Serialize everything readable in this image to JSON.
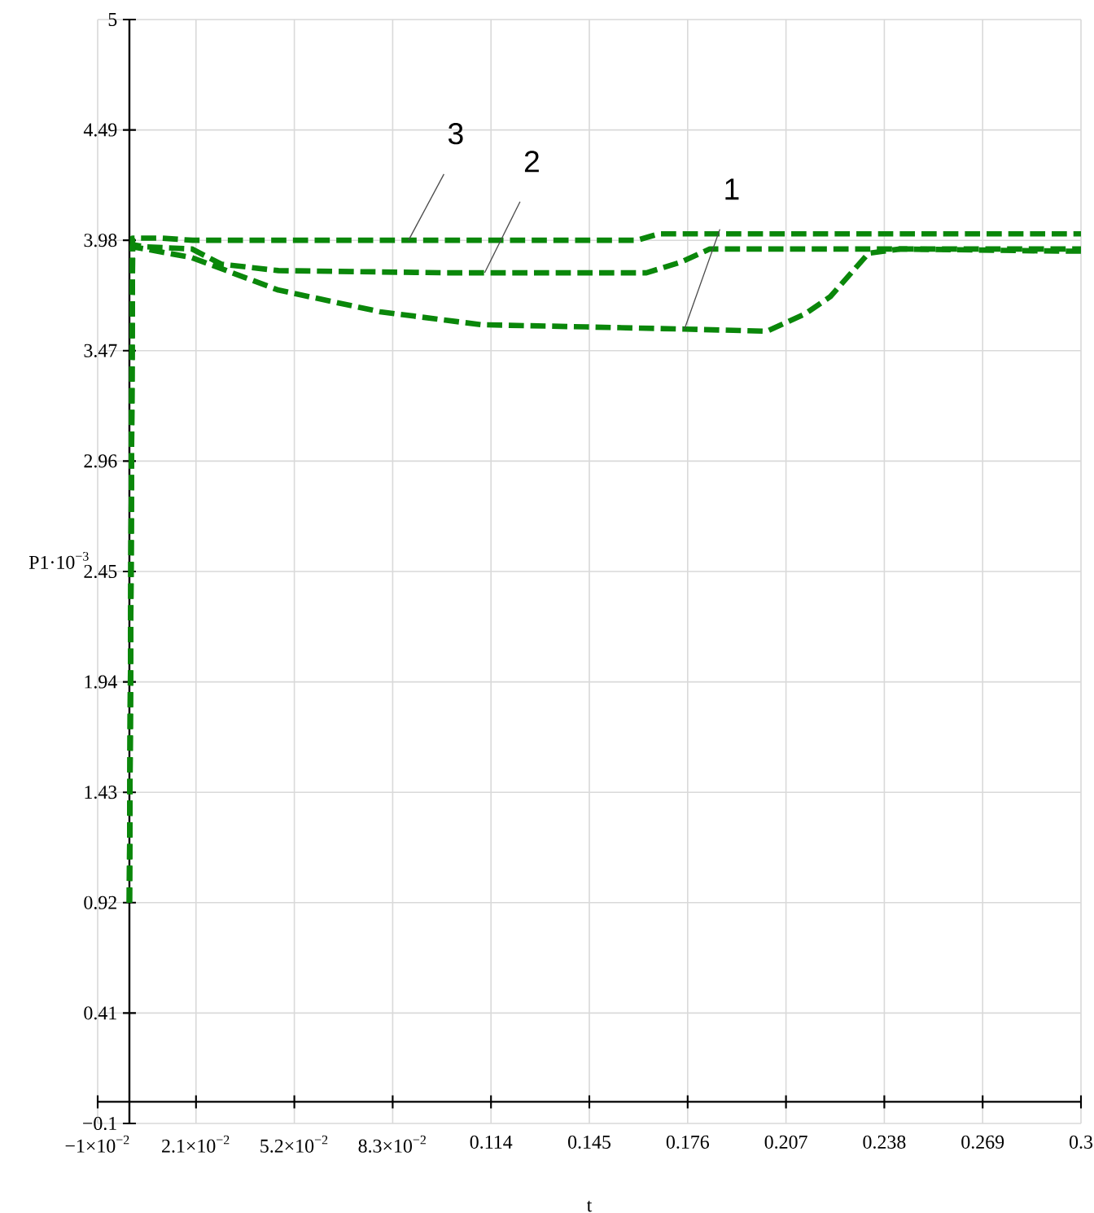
{
  "chart_data": {
    "type": "line",
    "xlabel": "t",
    "ylabel": "P1·10$^{−3}$",
    "xlim": [
      -0.01,
      0.3
    ],
    "ylim": [
      -0.1,
      5
    ],
    "xticks": [
      {
        "value": -0.01,
        "label": "−1×10$^{−2}$"
      },
      {
        "value": 0.021,
        "label": "2.1×10$^{−2}$"
      },
      {
        "value": 0.052,
        "label": "5.2×10$^{−2}$"
      },
      {
        "value": 0.083,
        "label": "8.3×10$^{−2}$"
      },
      0.114,
      0.145,
      0.176,
      0.207,
      0.238,
      0.269,
      0.3
    ],
    "yticks": [
      {
        "value": -0.1,
        "label": "−0.1"
      },
      0.41,
      0.92,
      1.43,
      1.94,
      2.45,
      2.96,
      3.47,
      3.98,
      4.49,
      5
    ],
    "grid": true,
    "marker": "none",
    "line_style": "dashed",
    "series": [
      {
        "color": "#0a870a",
        "x": [
          0,
          0.001,
          0.005,
          0.0197,
          0.047,
          0.079,
          0.111,
          0.144,
          0.175,
          0.201,
          0.213,
          0.221,
          0.233,
          0.243,
          0.294,
          0.3
        ],
        "values": [
          0.92,
          3.95,
          3.94,
          3.9,
          3.75,
          3.65,
          3.59,
          3.58,
          3.57,
          3.56,
          3.64,
          3.72,
          3.92,
          3.94,
          3.93,
          3.93
        ]
      },
      {
        "color": "#0a870a",
        "x": [
          0,
          0.001,
          0.005,
          0.0197,
          0.029,
          0.047,
          0.1,
          0.163,
          0.174,
          0.183,
          0.3
        ],
        "values": [
          0.92,
          3.96,
          3.95,
          3.94,
          3.87,
          3.84,
          3.83,
          3.83,
          3.88,
          3.94,
          3.94
        ]
      },
      {
        "color": "#0a870a",
        "x": [
          0,
          0.001,
          0.01,
          0.02,
          0.16,
          0.167,
          0.3
        ],
        "values": [
          0.92,
          3.99,
          3.99,
          3.98,
          3.98,
          4.01,
          4.01
        ]
      }
    ],
    "annotations": [
      {
        "text": "3",
        "x": 0.088,
        "y": 3.98
      },
      {
        "text": "2",
        "x": 0.112,
        "y": 3.83
      },
      {
        "text": "1",
        "x": 0.175,
        "y": 3.57
      }
    ]
  }
}
